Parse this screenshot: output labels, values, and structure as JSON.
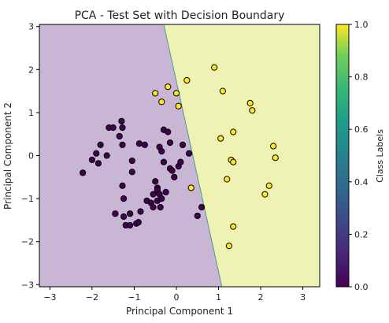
{
  "chart_data": {
    "type": "scatter",
    "title": "PCA - Test Set with Decision Boundary",
    "xlabel": "Principal Component 1",
    "ylabel": "Principal Component 2",
    "xlim": [
      -3.25,
      3.4
    ],
    "ylim": [
      -3.05,
      3.05
    ],
    "xticks": [
      -3,
      -2,
      -1,
      0,
      1,
      2,
      3
    ],
    "yticks": [
      -3,
      -2,
      -1,
      0,
      1,
      2,
      3
    ],
    "grid": false,
    "decision_boundary": {
      "points": [
        [
          -0.3,
          3.05
        ],
        [
          1.08,
          -3.05
        ]
      ],
      "region_colors": {
        "class_0": "#c8b6d4",
        "class_1": "#eef3b4"
      },
      "line_color": "#4a9c8c"
    },
    "colorbar": {
      "label": "Class Labels",
      "range": [
        0.0,
        1.0
      ],
      "ticks": [
        "0.0",
        "0.2",
        "0.4",
        "0.6",
        "0.8",
        "1.0"
      ],
      "cmap": "viridis"
    },
    "class_colors": {
      "0": "#440154",
      "1": "#fde725"
    },
    "marker_edge_color": "#000000",
    "series": [
      {
        "label": 0,
        "points": [
          [
            -2.22,
            -0.4
          ],
          [
            -2.0,
            -0.1
          ],
          [
            -1.85,
            -0.18
          ],
          [
            -1.9,
            0.05
          ],
          [
            -1.8,
            0.25
          ],
          [
            -1.65,
            0.0
          ],
          [
            -1.6,
            0.65
          ],
          [
            -1.5,
            0.65
          ],
          [
            -1.45,
            -1.35
          ],
          [
            -1.35,
            0.45
          ],
          [
            -1.3,
            0.8
          ],
          [
            -1.28,
            0.65
          ],
          [
            -1.28,
            0.25
          ],
          [
            -1.28,
            -0.7
          ],
          [
            -1.25,
            -1.0
          ],
          [
            -1.25,
            -1.42
          ],
          [
            -1.2,
            -1.62
          ],
          [
            -1.1,
            -1.62
          ],
          [
            -1.1,
            -1.35
          ],
          [
            -1.05,
            -0.38
          ],
          [
            -1.05,
            -0.12
          ],
          [
            -0.95,
            -1.58
          ],
          [
            -0.9,
            -1.55
          ],
          [
            -0.88,
            0.28
          ],
          [
            -0.85,
            -1.3
          ],
          [
            -0.75,
            0.25
          ],
          [
            -0.7,
            -1.05
          ],
          [
            -0.6,
            -1.1
          ],
          [
            -0.55,
            -1.2
          ],
          [
            -0.55,
            -0.9
          ],
          [
            -0.5,
            -0.6
          ],
          [
            -0.45,
            -0.75
          ],
          [
            -0.45,
            -1.05
          ],
          [
            -0.45,
            -0.8
          ],
          [
            -0.4,
            -0.9
          ],
          [
            -0.4,
            0.2
          ],
          [
            -0.38,
            -1.2
          ],
          [
            -0.35,
            0.1
          ],
          [
            -0.35,
            -1.0
          ],
          [
            -0.3,
            0.6
          ],
          [
            -0.25,
            -0.85
          ],
          [
            -0.2,
            0.55
          ],
          [
            -0.15,
            -0.3
          ],
          [
            -0.15,
            0.3
          ],
          [
            -0.1,
            -0.35
          ],
          [
            -0.3,
            -0.15
          ],
          [
            0.05,
            -0.25
          ],
          [
            -0.05,
            -0.5
          ],
          [
            0.1,
            -0.15
          ],
          [
            0.15,
            0.25
          ],
          [
            0.3,
            0.05
          ],
          [
            0.5,
            -1.4
          ],
          [
            0.6,
            -1.2
          ]
        ]
      },
      {
        "label": 1,
        "points": [
          [
            -0.5,
            1.45
          ],
          [
            -0.35,
            1.25
          ],
          [
            -0.2,
            1.6
          ],
          [
            0.0,
            1.45
          ],
          [
            0.05,
            1.15
          ],
          [
            0.25,
            1.75
          ],
          [
            0.35,
            -0.75
          ],
          [
            0.9,
            2.05
          ],
          [
            1.05,
            0.4
          ],
          [
            1.1,
            1.5
          ],
          [
            1.2,
            -0.55
          ],
          [
            1.25,
            -2.1
          ],
          [
            1.3,
            -0.1
          ],
          [
            1.35,
            -0.15
          ],
          [
            1.35,
            0.55
          ],
          [
            1.35,
            -1.65
          ],
          [
            1.75,
            1.22
          ],
          [
            1.8,
            1.05
          ],
          [
            2.1,
            -0.9
          ],
          [
            2.2,
            -0.7
          ],
          [
            2.3,
            0.22
          ],
          [
            2.35,
            -0.05
          ]
        ]
      }
    ]
  }
}
